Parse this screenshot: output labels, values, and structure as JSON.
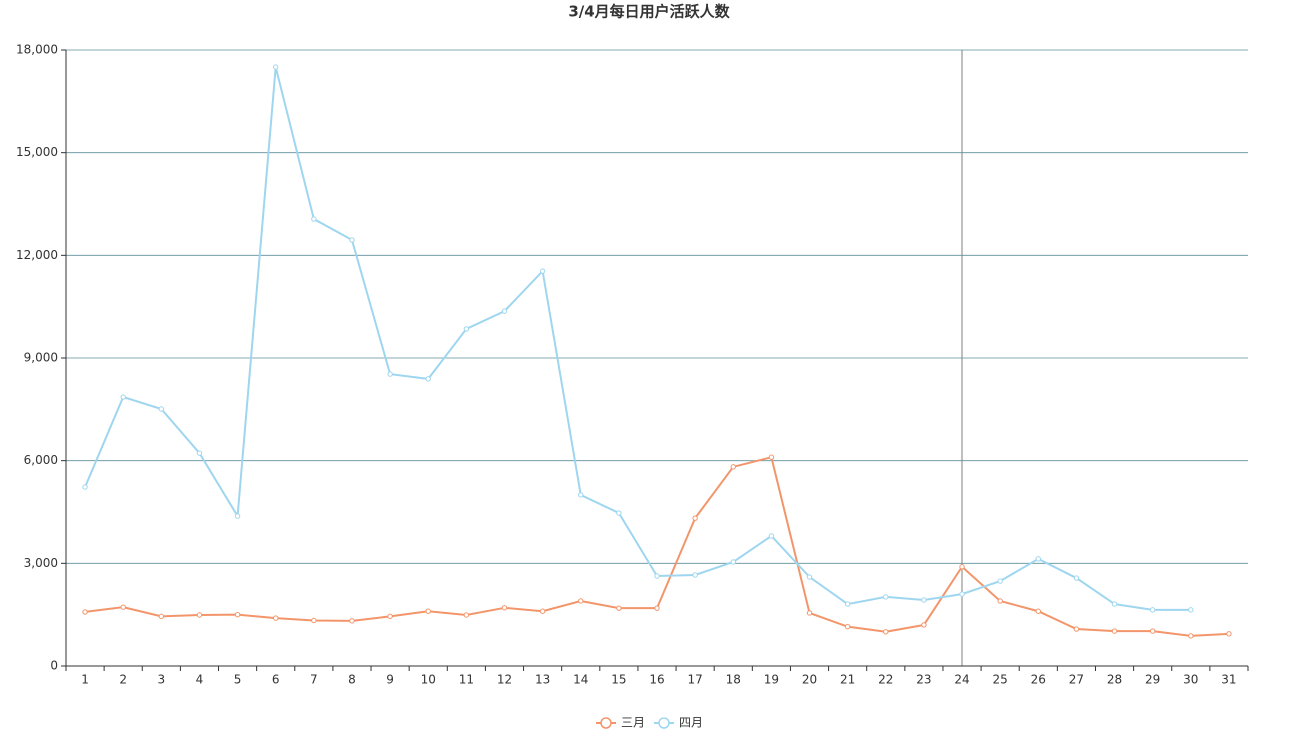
{
  "chart_data": {
    "type": "line",
    "title": "3/4月每日用户活跃人数",
    "categories": [
      "1",
      "2",
      "3",
      "4",
      "5",
      "6",
      "7",
      "8",
      "9",
      "10",
      "11",
      "12",
      "13",
      "14",
      "15",
      "16",
      "17",
      "18",
      "19",
      "20",
      "21",
      "22",
      "23",
      "24",
      "25",
      "26",
      "27",
      "28",
      "29",
      "30",
      "31"
    ],
    "series": [
      {
        "name": "三月",
        "color": "#f3956a",
        "values": [
          1580,
          1720,
          1450,
          1490,
          1500,
          1400,
          1330,
          1320,
          1450,
          1600,
          1490,
          1700,
          1600,
          1900,
          1690,
          1690,
          4320,
          5820,
          6100,
          1550,
          1150,
          1000,
          1200,
          2900,
          1900,
          1600,
          1080,
          1020,
          1020,
          880,
          940
        ]
      },
      {
        "name": "四月",
        "color": "#9fd6ef",
        "values": [
          5230,
          7860,
          7510,
          6220,
          4380,
          17500,
          13060,
          12450,
          8530,
          8390,
          9850,
          10370,
          11540,
          5000,
          4470,
          2630,
          2660,
          3040,
          3800,
          2600,
          1810,
          2020,
          1930,
          2100,
          2480,
          3130,
          2570,
          1810,
          1640,
          1640,
          null
        ]
      }
    ],
    "ylim": [
      0,
      18000
    ],
    "yticks": [
      0,
      {
        "value": 3000,
        "label": "3,000"
      },
      {
        "value": 6000,
        "label": "6,000"
      },
      {
        "value": 9000,
        "label": "9,000"
      },
      {
        "value": 12000,
        "label": "12,000"
      },
      {
        "value": 15000,
        "label": "15,000"
      },
      {
        "value": 18000,
        "label": "18,000"
      }
    ],
    "grid": true,
    "legend": "bottom"
  }
}
